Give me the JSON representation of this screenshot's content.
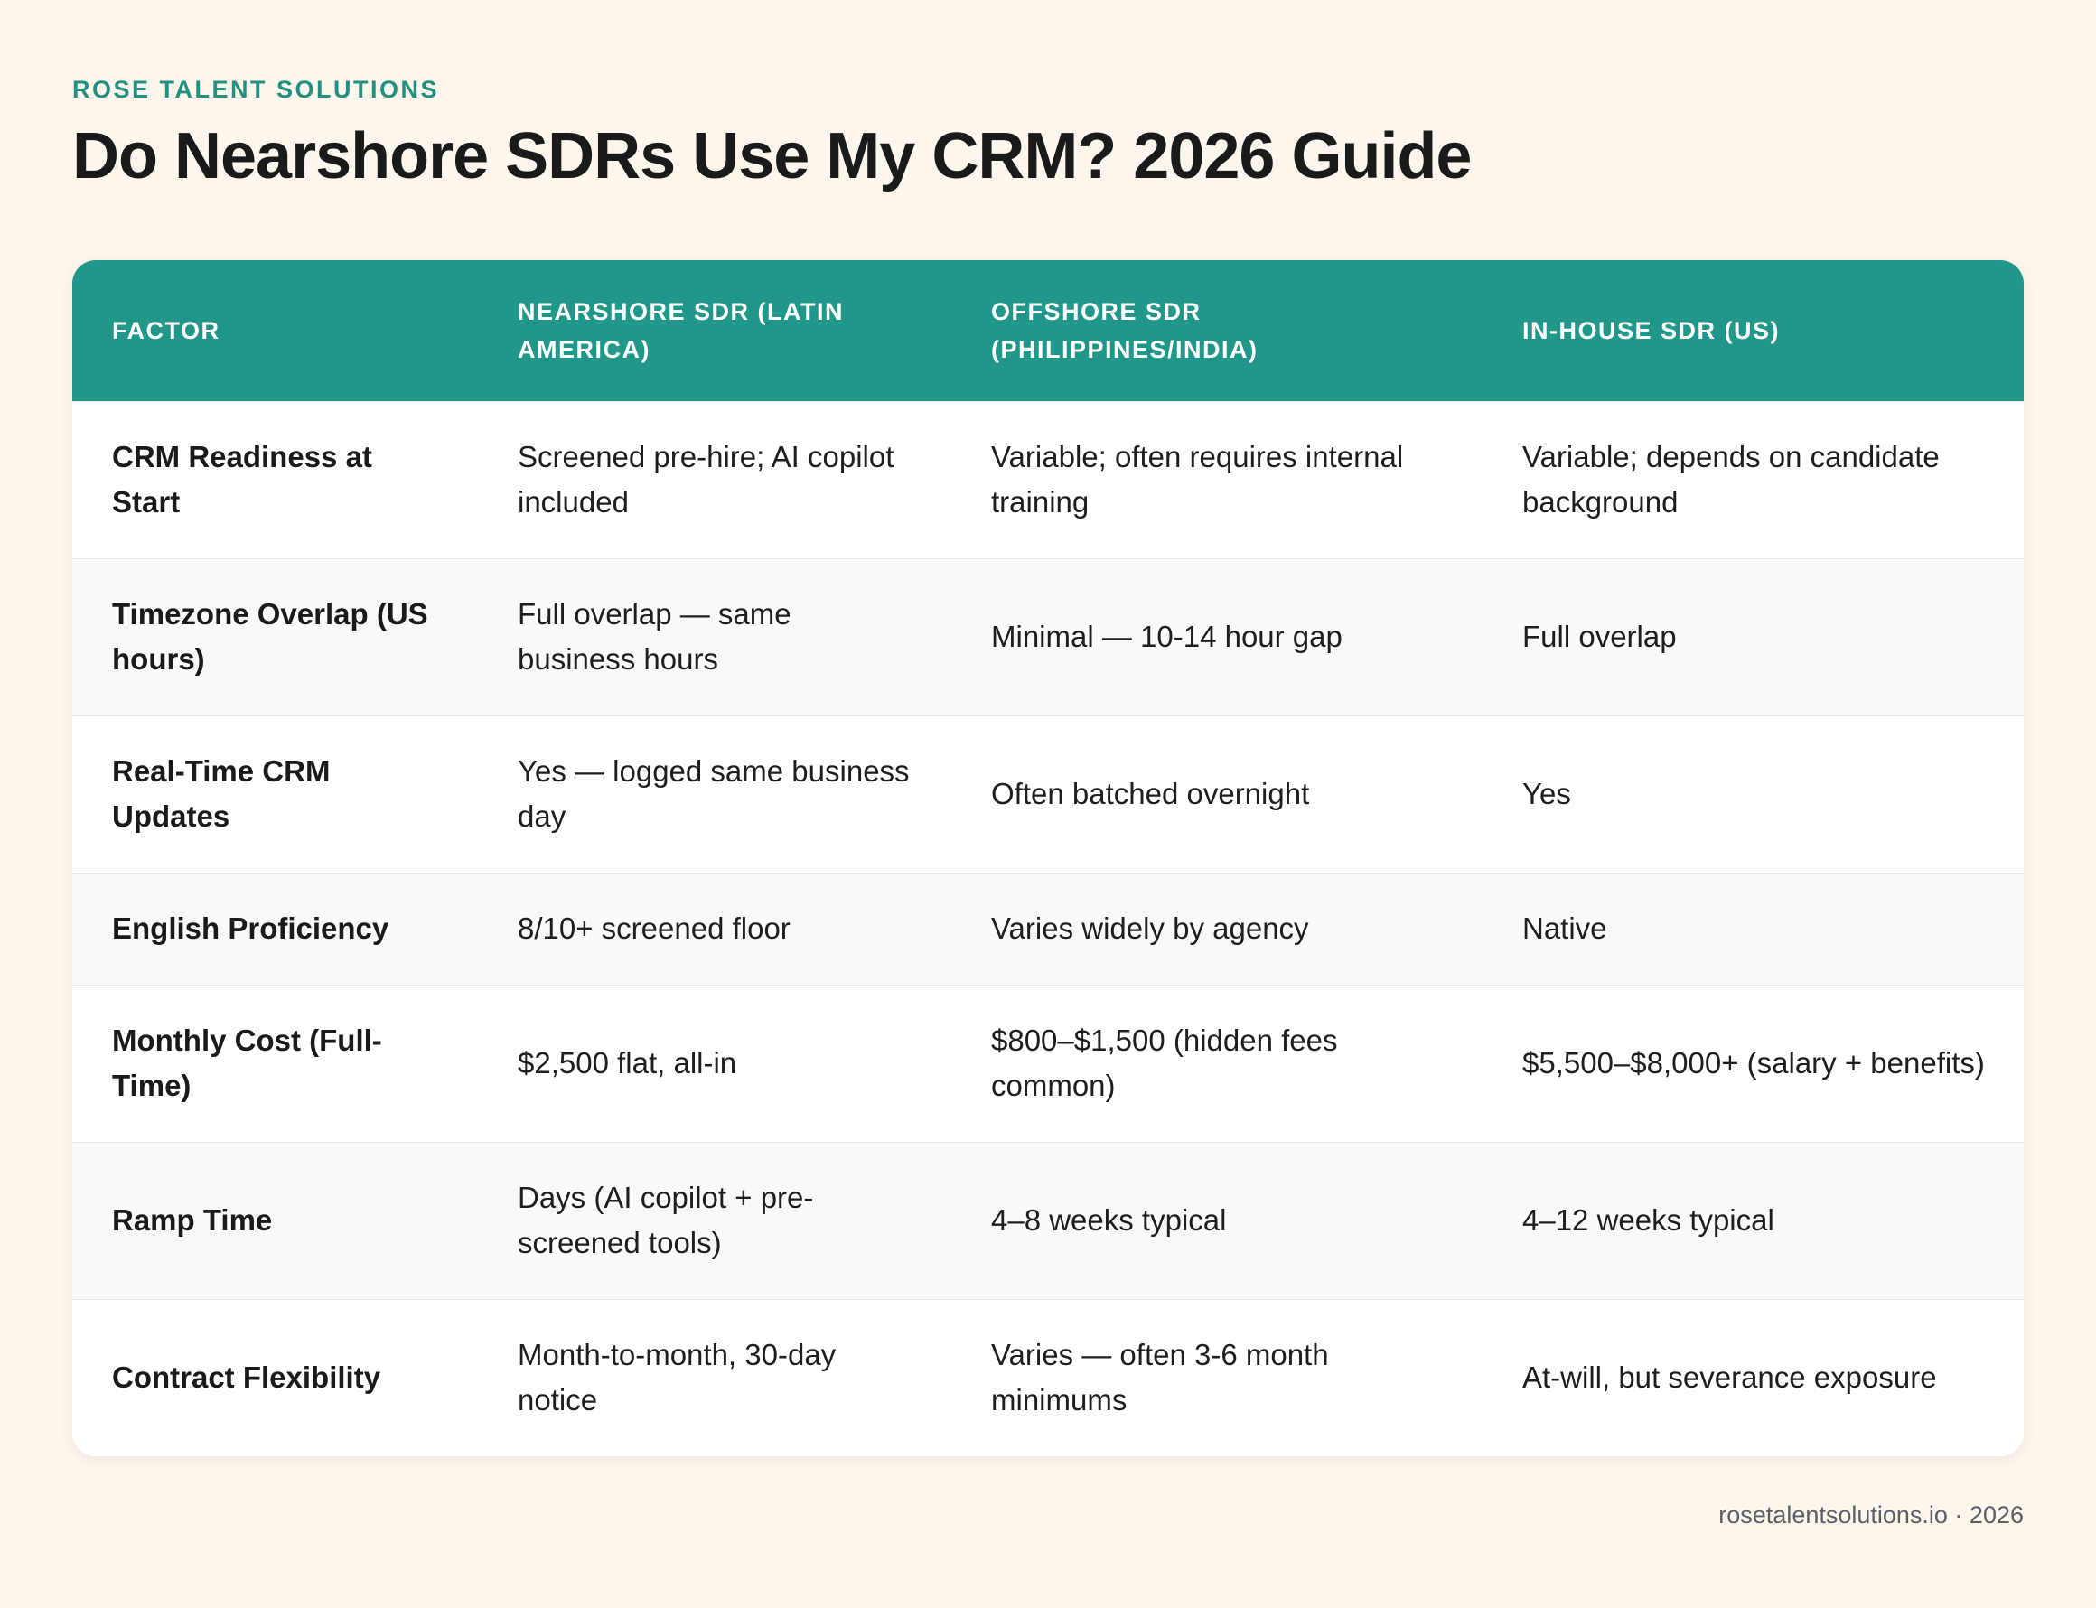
{
  "header": {
    "brand": "ROSE TALENT SOLUTIONS",
    "title": "Do Nearshore SDRs Use My CRM? 2026 Guide"
  },
  "table": {
    "columns": [
      "FACTOR",
      "NEARSHORE SDR (LATIN AMERICA)",
      "OFFSHORE SDR (PHILIPPINES/INDIA)",
      "IN-HOUSE SDR (US)"
    ],
    "rows": [
      [
        "CRM Readiness at Start",
        "Screened pre-hire; AI copilot included",
        "Variable; often requires internal training",
        "Variable; depends on candidate background"
      ],
      [
        "Timezone Overlap (US hours)",
        "Full overlap — same business hours",
        "Minimal — 10-14 hour gap",
        "Full overlap"
      ],
      [
        "Real-Time CRM Updates",
        "Yes — logged same business day",
        "Often batched overnight",
        "Yes"
      ],
      [
        "English Proficiency",
        "8/10+ screened floor",
        "Varies widely by agency",
        "Native"
      ],
      [
        "Monthly Cost (Full-Time)",
        "$2,500 flat, all-in",
        "$800–$1,500 (hidden fees common)",
        "$5,500–$8,000+ (salary + benefits)"
      ],
      [
        "Ramp Time",
        "Days (AI copilot + pre-screened tools)",
        "4–8 weeks typical",
        "4–12 weeks typical"
      ],
      [
        "Contract Flexibility",
        "Month-to-month, 30-day notice",
        "Varies — often 3-6 month minimums",
        "At-will, but severance exposure"
      ]
    ]
  },
  "footer": {
    "text": "rosetalentsolutions.io · 2026"
  },
  "colors": {
    "accent": "#21978a",
    "brand_text": "#24907f",
    "background": "#fdf6ec"
  }
}
